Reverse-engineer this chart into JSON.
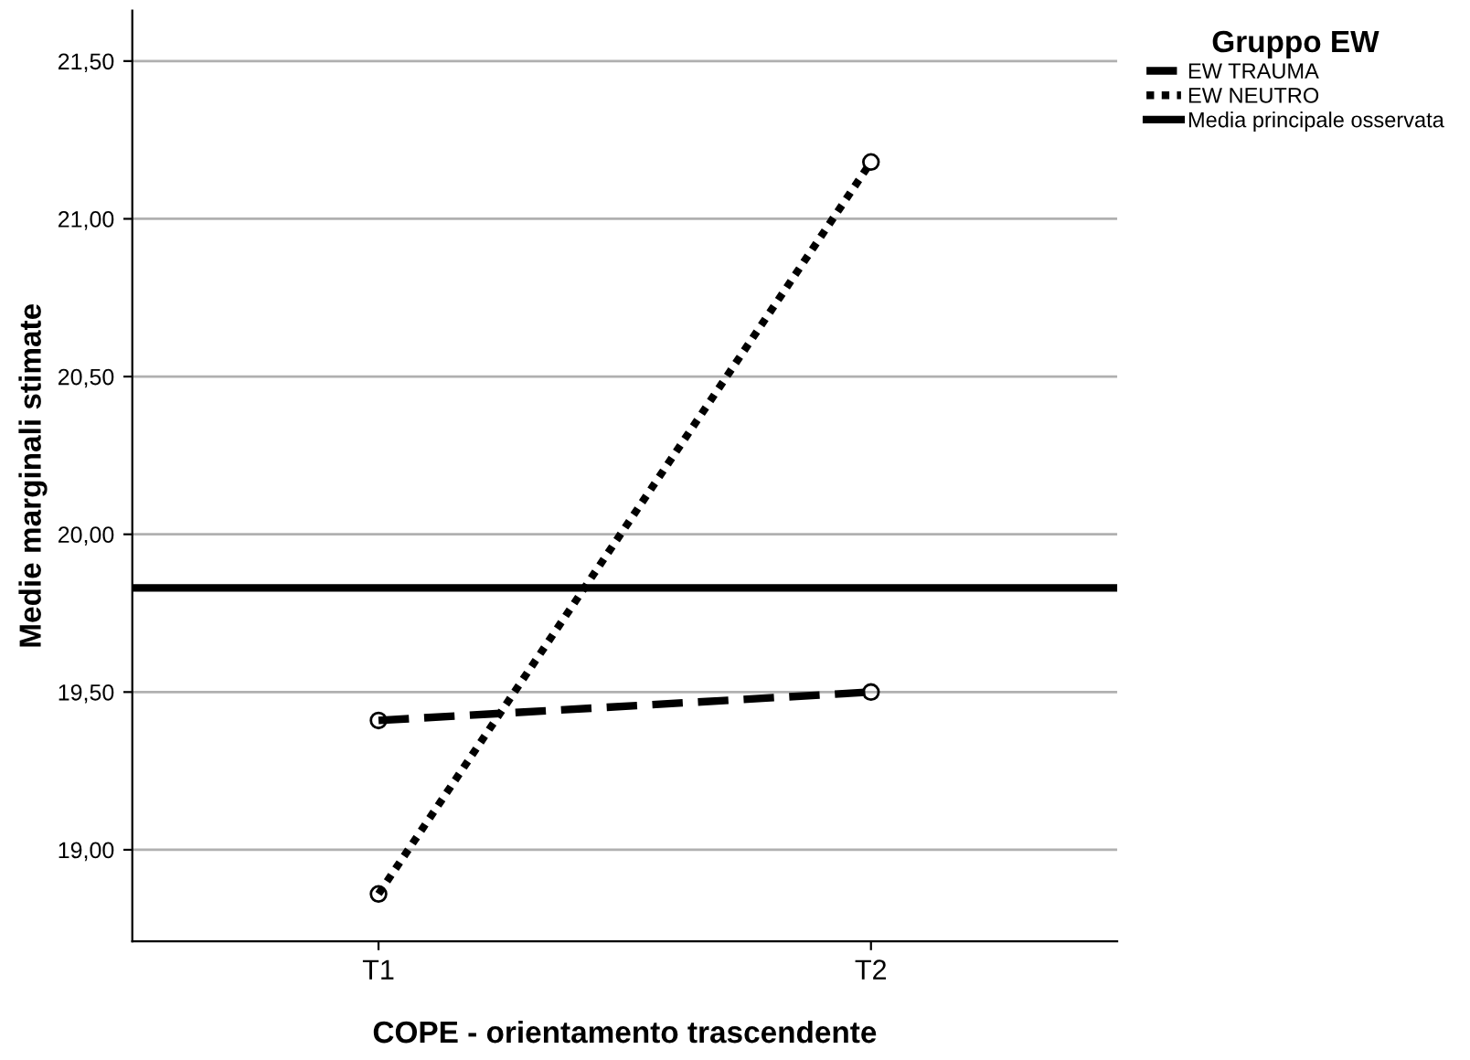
{
  "chart_data": {
    "type": "line",
    "xlabel": "COPE - orientamento trascendente",
    "ylabel": "Medie marginali stimate",
    "legend_title": "Gruppo EW",
    "categories": [
      "T1",
      "T2"
    ],
    "series": [
      {
        "name": "EW TRAUMA",
        "color": "#000000",
        "values": [
          19.41,
          19.5
        ],
        "line_style": "dashed"
      },
      {
        "name": "EW NEUTRO",
        "color": "#000000",
        "values": [
          18.86,
          21.18
        ],
        "line_style": "dotted"
      }
    ],
    "marker": "circle",
    "ref_lines": [
      {
        "axis": "y",
        "value": 19.83,
        "label": "Media principale osservata",
        "color": "#000000",
        "line_style": "solid"
      }
    ],
    "ylim": [
      18.71,
      21.66
    ],
    "yticks": [
      {
        "value": 19,
        "label": "19,00"
      },
      {
        "value": 19.5,
        "label": "19,50"
      },
      {
        "value": 20,
        "label": "20,00"
      },
      {
        "value": 20.5,
        "label": "20,50"
      },
      {
        "value": 21,
        "label": "21,00"
      },
      {
        "value": 21.5,
        "label": "21,50"
      }
    ],
    "grid": "y",
    "legend": "top right"
  }
}
